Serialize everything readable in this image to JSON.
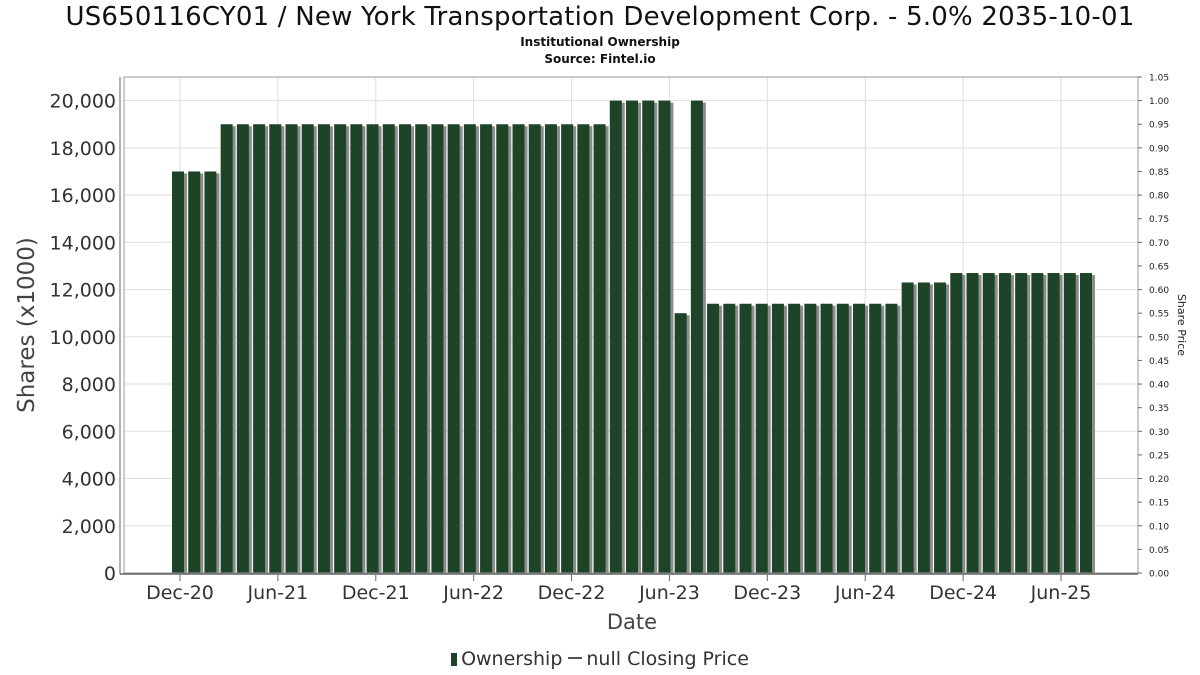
{
  "chart_data": {
    "type": "bar",
    "title": "US650116CY01 / New York Transportation Development Corp. - 5.0% 2035-10-01",
    "subtitle": "Institutional Ownership",
    "source": "Source: Fintel.io",
    "xlabel": "Date",
    "ylabel": "Shares (x1000)",
    "y2label": "Share Price",
    "ylim": [
      0,
      21000
    ],
    "y2lim": [
      0,
      1.05
    ],
    "yticks": [
      "0",
      "2,000",
      "4,000",
      "6,000",
      "8,000",
      "10,000",
      "12,000",
      "14,000",
      "16,000",
      "18,000",
      "20,000"
    ],
    "y2ticks": [
      "0.00",
      "0.05",
      "0.10",
      "0.15",
      "0.20",
      "0.25",
      "0.30",
      "0.35",
      "0.40",
      "0.45",
      "0.50",
      "0.55",
      "0.60",
      "0.65",
      "0.70",
      "0.75",
      "0.80",
      "0.85",
      "0.90",
      "0.95",
      "1.00",
      "1.05"
    ],
    "xticks": [
      "Dec-20",
      "Jun-21",
      "Dec-21",
      "Jun-22",
      "Dec-22",
      "Jun-23",
      "Dec-23",
      "Jun-24",
      "Dec-24",
      "Jun-25"
    ],
    "grid": true,
    "legend_position": "bottom",
    "series": [
      {
        "name": "Ownership",
        "color": "#1d4426",
        "values": [
          17000,
          17000,
          17000,
          19000,
          19000,
          19000,
          19000,
          19000,
          19000,
          19000,
          19000,
          19000,
          19000,
          19000,
          19000,
          19000,
          19000,
          19000,
          19000,
          19000,
          19000,
          19000,
          19000,
          19000,
          19000,
          19000,
          19000,
          20000,
          20000,
          20000,
          20000,
          11000,
          20000,
          11400,
          11400,
          11400,
          11400,
          11400,
          11400,
          11400,
          11400,
          11400,
          11400,
          11400,
          11400,
          12300,
          12300,
          12300,
          12700,
          12700,
          12700,
          12700,
          12700,
          12700,
          12700,
          12700,
          12700
        ]
      },
      {
        "name": "null Closing Price",
        "color": "#555555",
        "values": []
      }
    ]
  }
}
